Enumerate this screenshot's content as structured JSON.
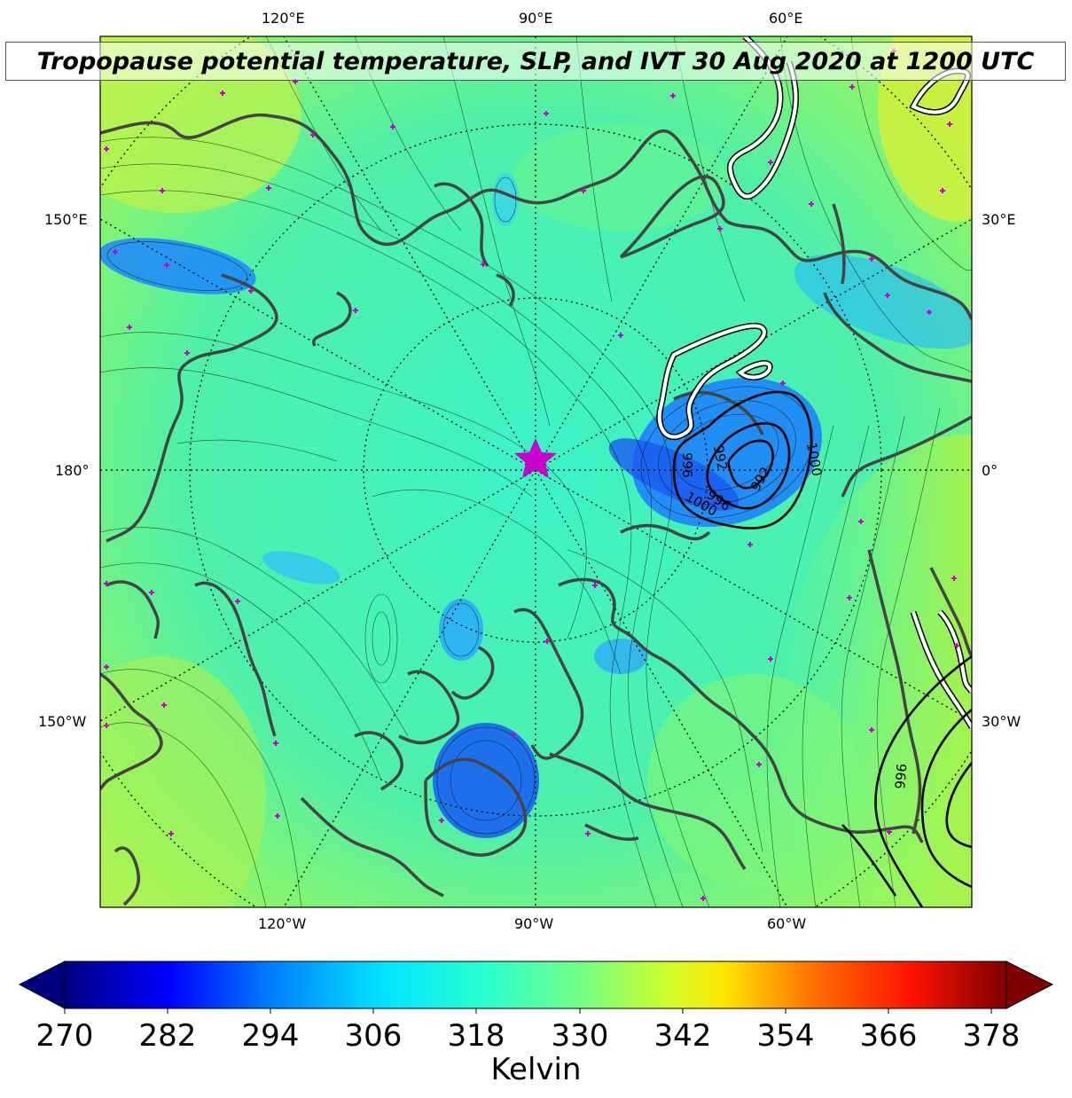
{
  "title": "Tropopause potential temperature, SLP, and IVT 30 Aug 2020 at 1200 UTC",
  "labels": {
    "top": [
      "120°E",
      "90°E",
      "60°E"
    ],
    "bottom": [
      "120°W",
      "90°W",
      "60°W"
    ],
    "left": [
      "150°E",
      "180°",
      "150°W"
    ],
    "right": [
      "30°E",
      "0°",
      "30°W"
    ]
  },
  "slp_contours": [
    "1000",
    "996",
    "992",
    "992",
    "996",
    "1000",
    "996"
  ],
  "colorbar": {
    "ticks": [
      "270",
      "282",
      "294",
      "306",
      "318",
      "330",
      "342",
      "354",
      "366",
      "378"
    ],
    "label": "Kelvin",
    "colors": [
      "#00007f",
      "#0000ff",
      "#007fff",
      "#00e5ff",
      "#29ffce",
      "#7dff7a",
      "#ceff29",
      "#ffe500",
      "#ff6a00",
      "#ff1300",
      "#7f0000"
    ]
  },
  "marker": {
    "type": "star",
    "color": "#cc00cc"
  }
}
